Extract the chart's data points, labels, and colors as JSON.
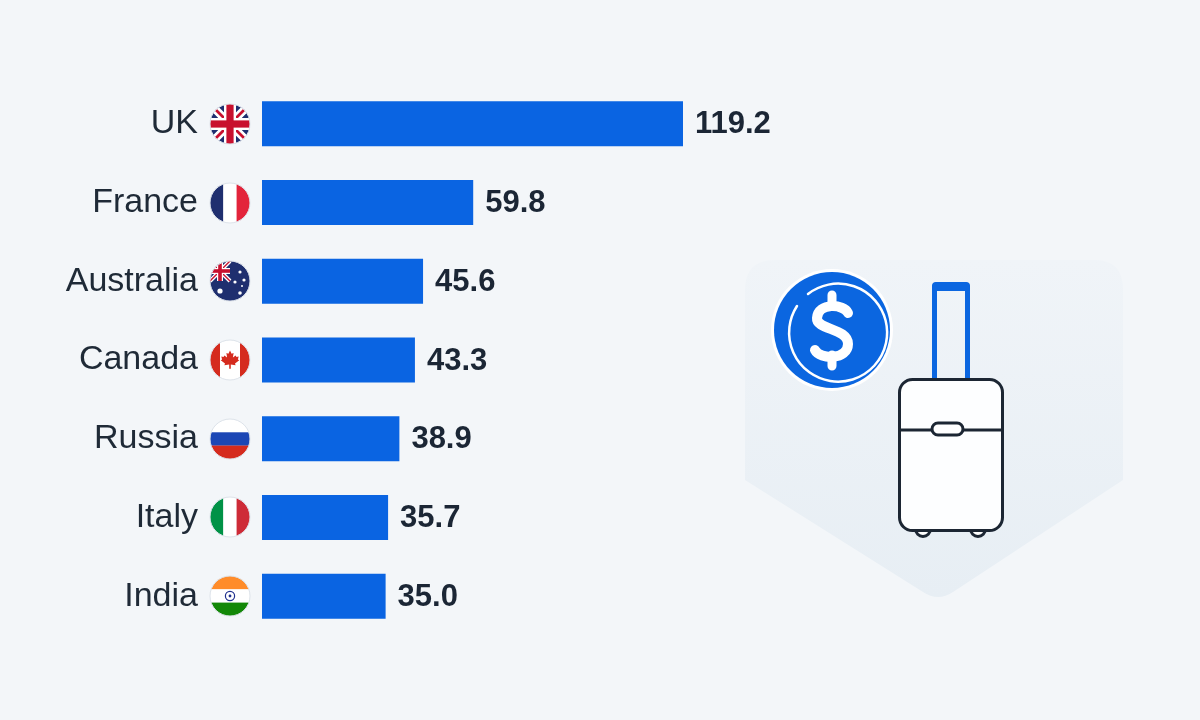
{
  "chart_data": {
    "type": "bar",
    "orientation": "horizontal",
    "categories": [
      "UK",
      "France",
      "Australia",
      "Canada",
      "Russia",
      "Italy",
      "India"
    ],
    "values": [
      119.2,
      59.8,
      45.6,
      43.3,
      38.9,
      35.7,
      35.0
    ],
    "value_labels": [
      "119.2",
      "59.8",
      "45.6",
      "43.3",
      "38.9",
      "35.7",
      "35.0"
    ],
    "color": "#0a64e2",
    "tick_labels": "y"
  }
}
